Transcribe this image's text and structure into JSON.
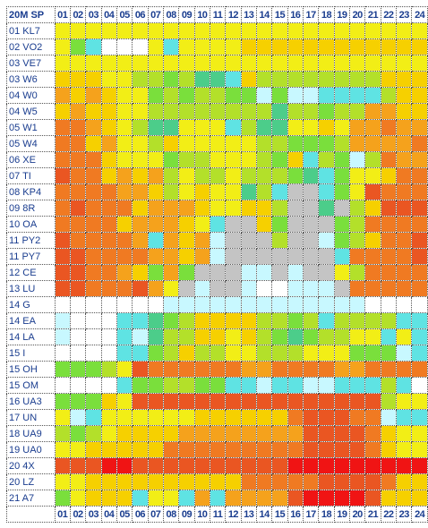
{
  "header": {
    "corner_label": "20M  SP",
    "hours": [
      "01",
      "02",
      "03",
      "04",
      "05",
      "06",
      "07",
      "08",
      "09",
      "10",
      "11",
      "12",
      "13",
      "14",
      "15",
      "16",
      "17",
      "18",
      "19",
      "20",
      "21",
      "22",
      "23",
      "24"
    ]
  },
  "palette": {
    "W": "#ffffff",
    "G": "#c4c4c4",
    "L": "#c8f8ff",
    "T": "#5fe3e3",
    "M": "#4ccd8a",
    "E": "#7adf3c",
    "F": "#b3e02a",
    "Y": "#f2ee16",
    "K": "#f6d000",
    "O": "#f5a21c",
    "R": "#f07a22",
    "S": "#ea5622",
    "X": "#f01414"
  },
  "rows": [
    {
      "label": "01 KL7",
      "cells": "YYYYYYYYYYYYYYYYYYYYYYYY"
    },
    {
      "label": "02 VO2",
      "cells": "YETWWWYTYYYYKKKKKKKKKKKK"
    },
    {
      "label": "03 VE7",
      "cells": "YYYYYYYYYYYYYYYYYYYYYYYY"
    },
    {
      "label": "03 W6",
      "cells": "KKKYYFFEFMMTKFFFFFFFFKKK"
    },
    {
      "label": "04 W0",
      "cells": "OKOKYYEFEFFEELELLTTTTFKK"
    },
    {
      "label": "04 W5",
      "cells": "KOKKYYFFFFFFFFMFFEFFOOKK"
    },
    {
      "label": "05 W1",
      "cells": "RROKYFMMYYYTFMMYYKYOOROO"
    },
    {
      "label": "05 W4",
      "cells": "RRKOYYFKYYYYYFFEEEFOOOOR"
    },
    {
      "label": "06 XE",
      "cells": "RRRKYYYEFFYYYFEKTFELFROO"
    },
    {
      "label": "07 TI",
      "cells": "SRRKOKOFYFFYFFFEMTEYYKRR"
    },
    {
      "label": "08 KP4",
      "cells": "RRRROOKFYKYYMFTGGTEYSRRR"
    },
    {
      "label": "09 8R",
      "cells": "RSRRRKOOOKYYKKFGGMGFKSSS"
    },
    {
      "label": "10 OA",
      "cells": "RRRRKOOOKYTGGKEGGGEFRRRR"
    },
    {
      "label": "11 PY2",
      "cells": "SRRRROTOKOLGGGFGGLEFKRRS"
    },
    {
      "label": "11 PY7",
      "cells": "SSRRRROOKOLGGGGGGGTRRRRS"
    },
    {
      "label": "12 CE",
      "cells": "SSRROKEOEGGGLLGLGGYFRRRR"
    },
    {
      "label": "13 LU",
      "cells": "SSRRRSOYGLGGLWWLLLGRRRRR"
    },
    {
      "label": "14 G",
      "cells": "WWWWWWWLLLLLLLLLLLLLWWWW"
    },
    {
      "label": "14 EA",
      "cells": "LWWWTTMEFKKKKFFEFTFFFFTT"
    },
    {
      "label": "14 LA",
      "cells": "LWWWTLMFFKKYKFEMEFFYYTYT"
    },
    {
      "label": "15 I",
      "cells": "WWWWTTEFKFFYYFFFYYYEEELT"
    },
    {
      "label": "15 OH",
      "cells": "EEEFYSRRRRRROORRRROORRRR"
    },
    {
      "label": "15 OM",
      "cells": "WWWWTEEFFEETTLTTLLTTTFTW"
    },
    {
      "label": "16 UA3",
      "cells": "EEEKYSSSSSSSSSSSSSSSSFYY"
    },
    {
      "label": "17 UN",
      "cells": "YLTYYYYYYKKKKKKRSSSRRLTT"
    },
    {
      "label": "18 UA9",
      "cells": "FEFYKKKKOOOOOOOOSSSSRKYY"
    },
    {
      "label": "19 UA0",
      "cells": "YYKKKKKRRRRRRRRRSSSSRKYY"
    },
    {
      "label": "20 4X",
      "cells": "SSSXXSSSSSSSSSSXXXXXXXXX"
    },
    {
      "label": "20 LZ",
      "cells": "YYKKKKKKKKKKRRRRRSSSSRKK"
    },
    {
      "label": "21 A7",
      "cells": "EYKKKTYYTOTOOOOSXXXXSKKK"
    }
  ],
  "footer": {
    "hours": [
      "01",
      "02",
      "03",
      "04",
      "05",
      "06",
      "07",
      "08",
      "09",
      "10",
      "11",
      "12",
      "13",
      "14",
      "15",
      "16",
      "17",
      "18",
      "19",
      "20",
      "21",
      "22",
      "23",
      "24"
    ]
  }
}
